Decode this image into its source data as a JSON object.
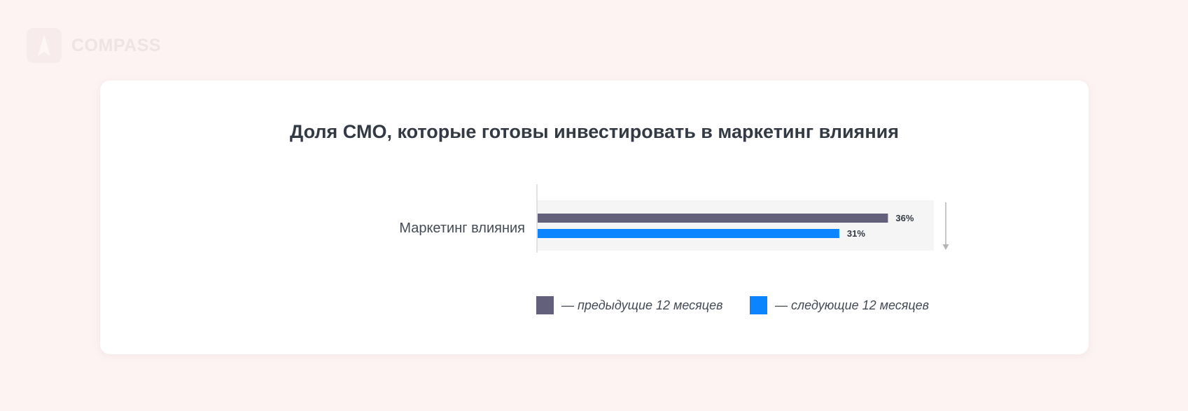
{
  "logo": {
    "text": "COMPASS"
  },
  "colors": {
    "previous": "#62607a",
    "next": "#0a84ff",
    "band": "#f5f5f5"
  },
  "chart_data": {
    "type": "bar",
    "orientation": "horizontal",
    "title": "Доля СМО, которые готовы инвестировать в маркетинг влияния",
    "categories": [
      "Маркетинг влияния"
    ],
    "series": [
      {
        "name": "— предыдущие 12 месяцев",
        "values": [
          36
        ],
        "labels": [
          "36%"
        ]
      },
      {
        "name": "— следующие 12 месяцев",
        "values": [
          31
        ],
        "labels": [
          "31%"
        ]
      }
    ],
    "legend": "bottom",
    "grid": false
  }
}
